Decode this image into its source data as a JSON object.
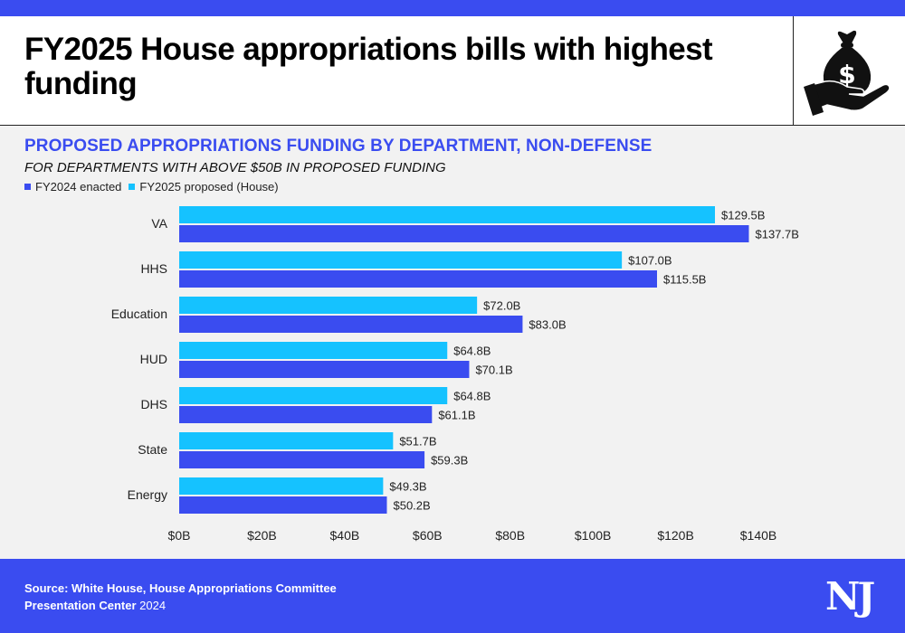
{
  "header": {
    "title": "FY2025 House appropriations bills with highest funding",
    "icon": "money-bag-hand-icon"
  },
  "chart": {
    "title": "PROPOSED APPROPRIATIONS FUNDING BY DEPARTMENT, NON-DEFENSE",
    "subtitle": "FOR DEPARTMENTS WITH ABOVE $50B IN PROPOSED FUNDING"
  },
  "chart_data": {
    "type": "bar",
    "orientation": "horizontal",
    "categories": [
      "VA",
      "HHS",
      "Education",
      "HUD",
      "DHS",
      "State",
      "Energy"
    ],
    "series": [
      {
        "name": "FY2025 proposed (House)",
        "color": "#15c2ff",
        "values": [
          129.5,
          107.0,
          72.0,
          64.8,
          64.8,
          51.7,
          49.3
        ],
        "labels": [
          "$129.5B",
          "$107.0B",
          "$72.0B",
          "$64.8B",
          "$64.8B",
          "$51.7B",
          "$49.3B"
        ]
      },
      {
        "name": "FY2024 enacted",
        "color": "#3a4cf0",
        "values": [
          137.7,
          115.5,
          83.0,
          70.1,
          61.1,
          59.3,
          50.2
        ],
        "labels": [
          "$137.7B",
          "$115.5B",
          "$83.0B",
          "$70.1B",
          "$61.1B",
          "$59.3B",
          "$50.2B"
        ]
      }
    ],
    "legend_order": [
      "FY2024 enacted",
      "FY2025 proposed (House)"
    ],
    "legend_position": "top-left",
    "xlim": [
      0,
      140
    ],
    "xticks": [
      0,
      20,
      40,
      60,
      80,
      100,
      120,
      140
    ],
    "xtick_labels": [
      "$0B",
      "$20B",
      "$40B",
      "$60B",
      "$80B",
      "$100B",
      "$120B",
      "$140B"
    ],
    "xlabel": "",
    "ylabel": "",
    "grid": false
  },
  "footer": {
    "source": "Source: White House, House Appropriations Committee",
    "credit_name": "Presentation Center",
    "credit_year": " 2024",
    "logo": "NJ"
  },
  "colors": {
    "accent": "#3a4cf0",
    "light_accent": "#15c2ff"
  }
}
